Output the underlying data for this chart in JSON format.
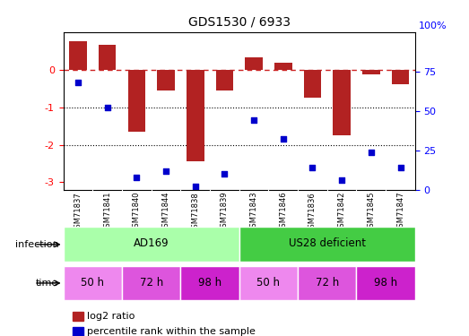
{
  "title": "GDS1530 / 6933",
  "samples": [
    "GSM71837",
    "GSM71841",
    "GSM71840",
    "GSM71844",
    "GSM71838",
    "GSM71839",
    "GSM71843",
    "GSM71846",
    "GSM71836",
    "GSM71842",
    "GSM71845",
    "GSM71847"
  ],
  "log2_ratio": [
    0.75,
    0.65,
    -1.65,
    -0.55,
    -2.45,
    -0.55,
    0.32,
    0.18,
    -0.75,
    -1.75,
    -0.12,
    -0.38
  ],
  "percentile_rank": [
    68,
    52,
    8,
    12,
    2,
    10,
    44,
    32,
    14,
    6,
    24,
    14
  ],
  "bar_color": "#b22222",
  "dot_color": "#0000cc",
  "dashed_line_color": "#cc2222",
  "infection_ad169_color": "#aaffaa",
  "infection_us28_color": "#44cc44",
  "time_50h_color": "#ee88ee",
  "time_72h_color": "#dd55dd",
  "time_98h_color": "#cc22cc",
  "bg_color": "#ffffff",
  "sample_bg_color": "#cccccc",
  "ylim_left": [
    -3.2,
    1.0
  ],
  "ylim_right": [
    0,
    100
  ],
  "time_labels": [
    "50 h",
    "72 h",
    "98 h",
    "50 h",
    "72 h",
    "98 h"
  ],
  "infection_labels": [
    "AD169",
    "US28 deficient"
  ],
  "legend_log2": "log2 ratio",
  "legend_pct": "percentile rank within the sample"
}
